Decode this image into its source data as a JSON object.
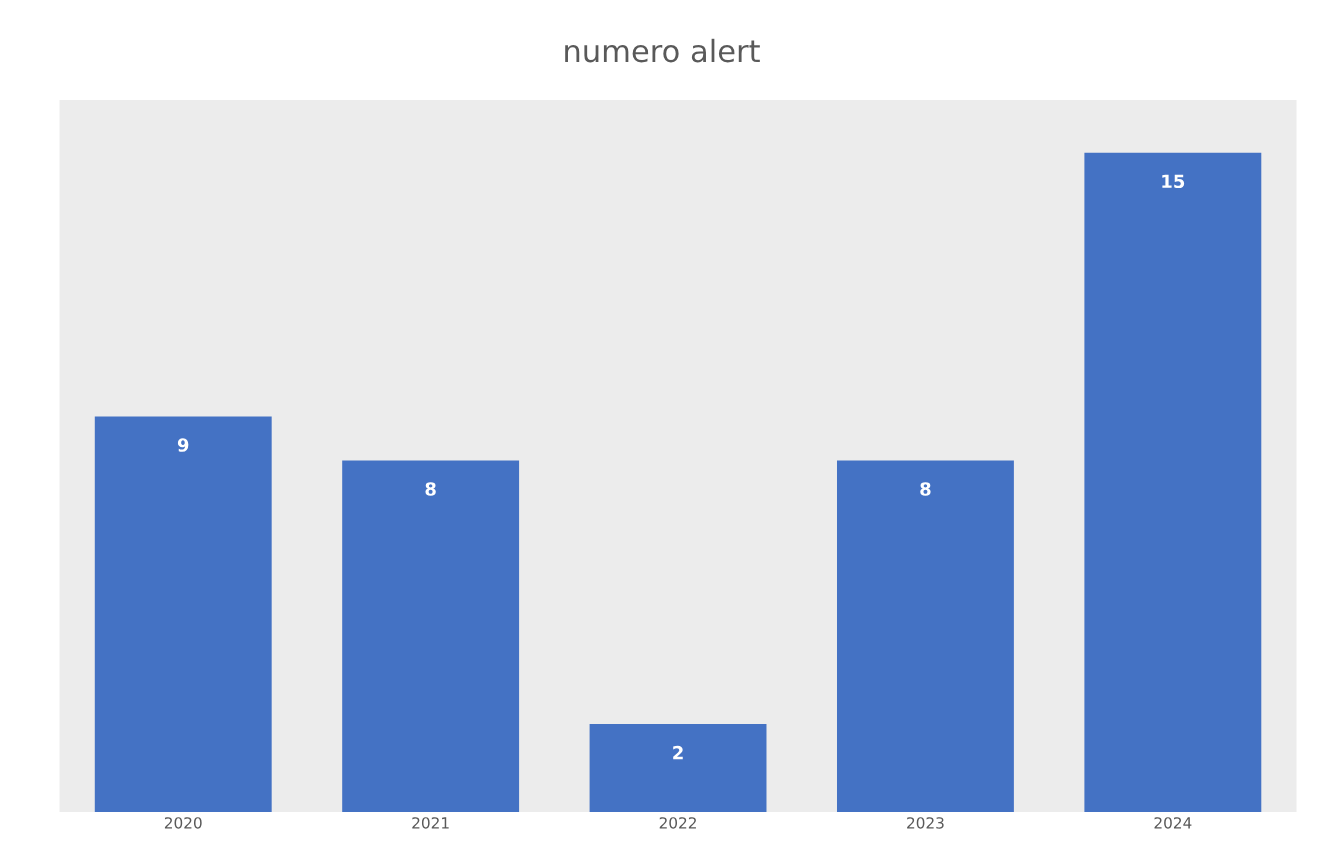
{
  "chart_data": {
    "type": "bar",
    "title": "numero alert",
    "categories": [
      "2020",
      "2021",
      "2022",
      "2023",
      "2024"
    ],
    "values": [
      9,
      8,
      2,
      8,
      15
    ],
    "color": "#4472c4",
    "data_labels": true,
    "grid": false,
    "legend": false
  }
}
